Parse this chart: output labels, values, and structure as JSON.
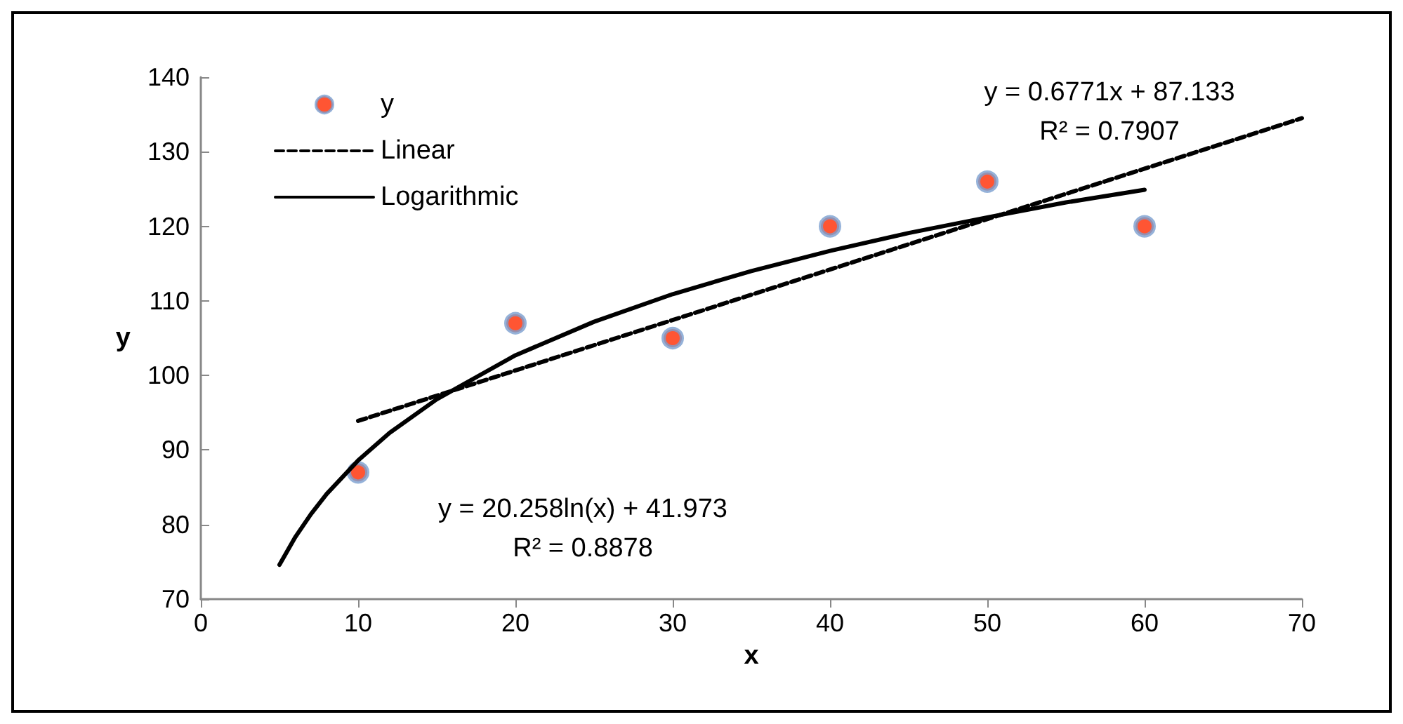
{
  "chart_data": {
    "type": "scatter",
    "xlabel": "x",
    "ylabel": "y",
    "xlim": [
      0,
      70
    ],
    "ylim": [
      70,
      140
    ],
    "xticks": [
      0,
      10,
      20,
      30,
      40,
      50,
      60,
      70
    ],
    "yticks": [
      70,
      80,
      90,
      100,
      110,
      120,
      130,
      140
    ],
    "grid": false,
    "legend": "top left",
    "series": [
      {
        "name": "y",
        "marker": "circle",
        "color": "#ff2a00",
        "x": [
          10,
          20,
          30,
          40,
          50,
          60
        ],
        "values": [
          87,
          107,
          105,
          120,
          126,
          120
        ]
      },
      {
        "name": "Linear",
        "type": "line",
        "marker": "none",
        "line_style": "dashed",
        "color": "#000000",
        "x": [
          10,
          70
        ],
        "values": [
          93.9,
          134.5
        ]
      },
      {
        "name": "Logarithmic",
        "type": "line",
        "marker": "none",
        "line_style": "solid",
        "color": "#000000",
        "x": [
          5,
          6,
          7,
          8,
          10,
          12,
          15,
          20,
          25,
          30,
          35,
          40,
          45,
          50,
          55,
          60
        ],
        "values": [
          74.6,
          78.3,
          81.4,
          84.1,
          88.6,
          92.3,
          96.8,
          102.7,
          107.2,
          110.9,
          114.0,
          116.7,
          119.1,
          121.2,
          123.2,
          124.9
        ]
      }
    ],
    "annotations": [
      "y = 0.6771x + 87.133\nR² = 0.7907",
      "y = 20.258ln(x) + 41.973\nR² = 0.8878"
    ]
  }
}
